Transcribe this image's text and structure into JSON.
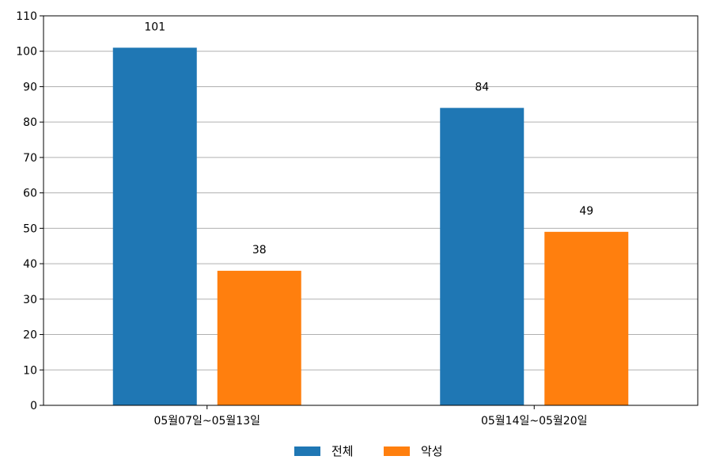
{
  "chart_data": {
    "type": "bar",
    "categories": [
      "05월07일~05월13일",
      "05월14일~05월20일"
    ],
    "series": [
      {
        "name": "전체",
        "values": [
          101,
          84
        ],
        "color": "#1f77b4"
      },
      {
        "name": "악성",
        "values": [
          38,
          49
        ],
        "color": "#ff7f0e"
      }
    ],
    "ylim": [
      0,
      110
    ],
    "yticks": [
      0,
      10,
      20,
      30,
      40,
      50,
      60,
      70,
      80,
      90,
      100,
      110
    ],
    "grid": "horizontal",
    "legend_position": "bottom-center",
    "data_labels": true
  }
}
